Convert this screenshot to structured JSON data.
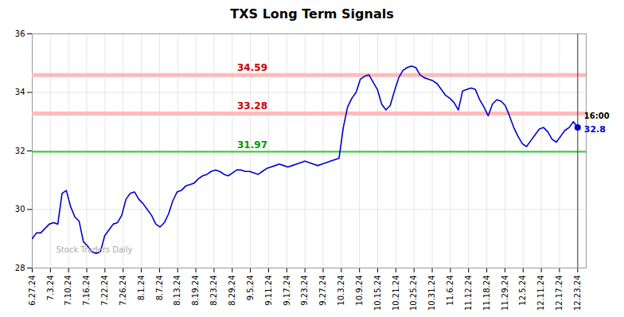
{
  "chart_data": {
    "type": "line",
    "title": "TXS Long Term Signals",
    "color": "#0000cc",
    "marker": "endpoint",
    "grid": true,
    "x": [
      0,
      1,
      2,
      3,
      4,
      5,
      6,
      7,
      8,
      9,
      10,
      11,
      12,
      13,
      14,
      15,
      16,
      17,
      18,
      19,
      20,
      21,
      22,
      23,
      24,
      25,
      26,
      27,
      28,
      29,
      30,
      31,
      32,
      33,
      34,
      35,
      36,
      37,
      38,
      39,
      40,
      41,
      42,
      43,
      44,
      45,
      46,
      47,
      48,
      49,
      50,
      51,
      52,
      53,
      54,
      55,
      56,
      57,
      58,
      59,
      60,
      61,
      62,
      63,
      64,
      65,
      66,
      67,
      68,
      69,
      70,
      71,
      72,
      73,
      74,
      75,
      76,
      77,
      78,
      79,
      80,
      81,
      82,
      83,
      84,
      85,
      86,
      87,
      88,
      89,
      90,
      91,
      92,
      93,
      94,
      95,
      96,
      97,
      98,
      99,
      100,
      101,
      102,
      103,
      104,
      105,
      106,
      107,
      108,
      109,
      110,
      111,
      112,
      113,
      114,
      115,
      116,
      117,
      118,
      119,
      120,
      121,
      122,
      123,
      124,
      125,
      126,
      127,
      128
    ],
    "values": [
      29.0,
      29.2,
      29.2,
      29.35,
      29.5,
      29.55,
      29.5,
      30.55,
      30.65,
      30.1,
      29.75,
      29.6,
      28.9,
      28.75,
      28.55,
      28.5,
      28.55,
      29.1,
      29.3,
      29.5,
      29.55,
      29.8,
      30.35,
      30.55,
      30.6,
      30.35,
      30.2,
      30.0,
      29.8,
      29.5,
      29.4,
      29.55,
      29.85,
      30.3,
      30.6,
      30.65,
      30.8,
      30.85,
      30.9,
      31.05,
      31.15,
      31.2,
      31.3,
      31.35,
      31.3,
      31.2,
      31.15,
      31.25,
      31.35,
      31.35,
      31.3,
      31.3,
      31.25,
      31.2,
      31.3,
      31.4,
      31.45,
      31.5,
      31.55,
      31.5,
      31.45,
      31.5,
      31.55,
      31.6,
      31.65,
      31.6,
      31.55,
      31.5,
      31.55,
      31.6,
      31.65,
      31.7,
      31.75,
      32.8,
      33.5,
      33.8,
      34.0,
      34.45,
      34.55,
      34.6,
      34.35,
      34.1,
      33.6,
      33.4,
      33.55,
      34.05,
      34.5,
      34.75,
      34.85,
      34.9,
      34.85,
      34.6,
      34.5,
      34.45,
      34.4,
      34.3,
      34.1,
      33.9,
      33.8,
      33.65,
      33.4,
      34.05,
      34.1,
      34.15,
      34.1,
      33.75,
      33.5,
      33.2,
      33.6,
      33.75,
      33.7,
      33.55,
      33.2,
      32.8,
      32.5,
      32.25,
      32.15,
      32.35,
      32.55,
      32.75,
      32.8,
      32.65,
      32.4,
      32.3,
      32.5,
      32.7,
      32.8,
      33.0,
      32.8
    ],
    "xlim": [
      0,
      130
    ],
    "xticks": [
      {
        "value": 0,
        "label": "6.27.24"
      },
      {
        "value": 4.266666666666667,
        "label": "7.3.24"
      },
      {
        "value": 8.533333333333333,
        "label": "7.10.24"
      },
      {
        "value": 12.8,
        "label": "7.16.24"
      },
      {
        "value": 17.066666666666666,
        "label": "7.22.24"
      },
      {
        "value": 21.333333333333332,
        "label": "7.26.24"
      },
      {
        "value": 25.6,
        "label": "8.1.24"
      },
      {
        "value": 29.866666666666667,
        "label": "8.7.24"
      },
      {
        "value": 34.13333333333333,
        "label": "8.13.24"
      },
      {
        "value": 38.4,
        "label": "8.19.24"
      },
      {
        "value": 42.666666666666664,
        "label": "8.23.24"
      },
      {
        "value": 46.93333333333333,
        "label": "8.29.24"
      },
      {
        "value": 51.2,
        "label": "9.5.24"
      },
      {
        "value": 55.46666666666667,
        "label": "9.11.24"
      },
      {
        "value": 59.733333333333334,
        "label": "9.17.24"
      },
      {
        "value": 64,
        "label": "9.23.24"
      },
      {
        "value": 68.26666666666667,
        "label": "9.27.24"
      },
      {
        "value": 72.53333333333333,
        "label": "10.3.24"
      },
      {
        "value": 76.8,
        "label": "10.9.24"
      },
      {
        "value": 81.06666666666666,
        "label": "10.15.24"
      },
      {
        "value": 85.33333333333333,
        "label": "10.21.24"
      },
      {
        "value": 89.6,
        "label": "10.25.24"
      },
      {
        "value": 93.86666666666666,
        "label": "10.31.24"
      },
      {
        "value": 98.13333333333334,
        "label": "11.6.24"
      },
      {
        "value": 102.4,
        "label": "11.12.24"
      },
      {
        "value": 106.66666666666667,
        "label": "11.18.24"
      },
      {
        "value": 110.93333333333334,
        "label": "11.29.24"
      },
      {
        "value": 115.2,
        "label": "12.5.24"
      },
      {
        "value": 119.46666666666667,
        "label": "12.11.24"
      },
      {
        "value": 123.73333333333333,
        "label": "12.17.24"
      },
      {
        "value": 128,
        "label": "12.23.24"
      }
    ],
    "ylim": [
      28,
      36
    ],
    "yticks": [
      28,
      30,
      32,
      34,
      36
    ],
    "reference_lines": [
      {
        "value": 34.59,
        "label": "34.59",
        "color": "#ffbbbb",
        "label_color": "#cc0000",
        "line_style": "thick"
      },
      {
        "value": 33.28,
        "label": "33.28",
        "color": "#ffbbbb",
        "label_color": "#cc0000",
        "line_style": "thick"
      },
      {
        "value": 31.97,
        "label": "31.97",
        "color": "#33cc33",
        "label_color": "#009900",
        "line_style": "solid"
      }
    ],
    "vline_color": "#555555",
    "endpoint_label": "16:00",
    "endpoint_value": "32.8",
    "endpoint_value_color": "#0000cc",
    "watermark": "Stock Traders Daily"
  }
}
